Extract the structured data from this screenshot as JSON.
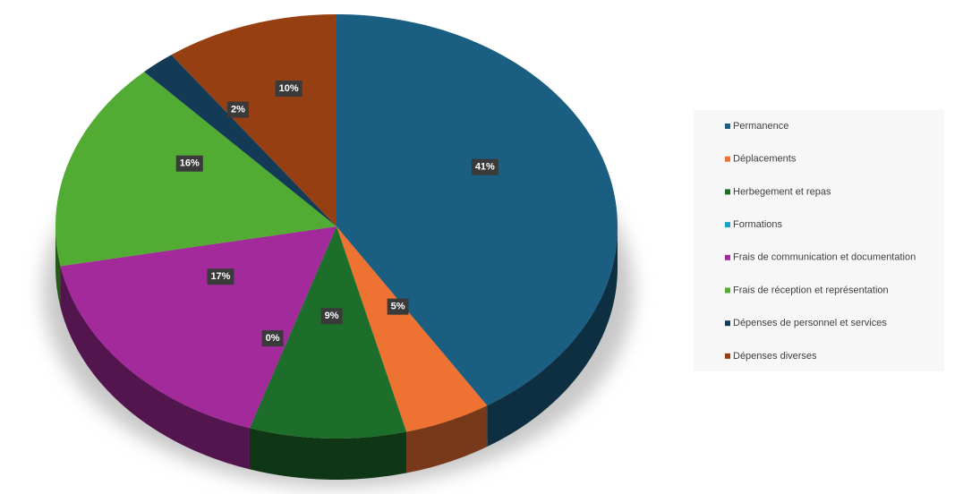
{
  "chart_data": {
    "type": "pie",
    "categories": [
      "Permanence",
      "Déplacements",
      "Herbegement et repas",
      "Formations",
      "Frais de communication et documentation",
      "Frais de réception et représentation",
      "Dépenses de personnel et services",
      "Dépenses diverses"
    ],
    "values": [
      41,
      5,
      9,
      0,
      17,
      16,
      2,
      10
    ],
    "value_labels": [
      "41%",
      "5%",
      "9%",
      "0%",
      "17%",
      "16%",
      "2%",
      "10%"
    ],
    "colors": [
      "#1a5e82",
      "#ee7231",
      "#1d6e2a",
      "#1ba1c9",
      "#a32a9b",
      "#52ab32",
      "#133b55",
      "#963f12"
    ],
    "legend": "right"
  }
}
